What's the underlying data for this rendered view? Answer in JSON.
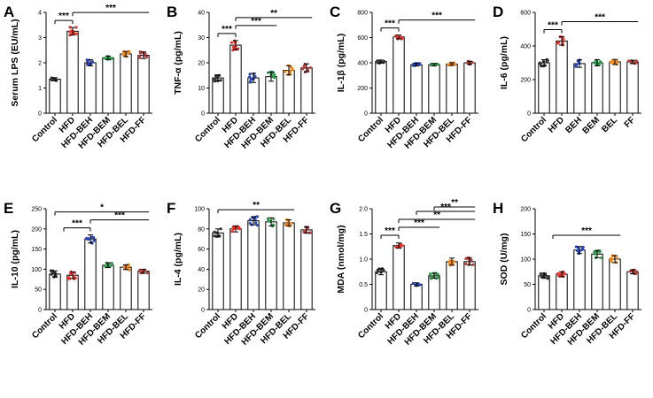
{
  "colors": {
    "Control": "#333333",
    "HFD": "#e8322d",
    "BEH": "#2b46b5",
    "BEM": "#2e9a4a",
    "BEL": "#f28a1e",
    "FF": "#b0413e",
    "axis": "#000000",
    "bar_fill": "#ffffff"
  },
  "chart_data": [
    {
      "panel": "A",
      "type": "bar",
      "ylabel": "Serum LPS (EU/mL)",
      "categories": [
        "Control",
        "HFD",
        "HFD-BEH",
        "HFD-BEM",
        "HFD-BEL",
        "HFD-FF"
      ],
      "values": [
        1.35,
        3.25,
        2.0,
        2.2,
        2.35,
        2.3
      ],
      "errors": [
        0.06,
        0.15,
        0.12,
        0.07,
        0.1,
        0.13
      ],
      "ylim": [
        0,
        4
      ],
      "yticks": [
        "0",
        "1",
        "2",
        "3",
        "4"
      ],
      "brackets": [
        {
          "from": 0,
          "to": 1,
          "label": "***"
        },
        {
          "from": 1,
          "to": [
            2,
            5
          ],
          "label": "***"
        }
      ]
    },
    {
      "panel": "B",
      "type": "bar",
      "ylabel": "TNF-α (pg/mL)",
      "categories": [
        "Control",
        "HFD",
        "HFD-BEH",
        "HFD-BEM",
        "HFD-BEL",
        "HFD-FF"
      ],
      "values": [
        14,
        27,
        14,
        14.5,
        17,
        18
      ],
      "errors": [
        1.2,
        1.8,
        1.8,
        1.8,
        1.8,
        1.6
      ],
      "ylim": [
        0,
        40
      ],
      "yticks": [
        "0",
        "10",
        "20",
        "30",
        "40"
      ],
      "brackets": [
        {
          "from": 0,
          "to": 1,
          "label": "***"
        },
        {
          "from": 1,
          "to": [
            2,
            3
          ],
          "label": "***"
        },
        {
          "from": 1,
          "to": [
            4,
            5
          ],
          "label": "**"
        }
      ]
    },
    {
      "panel": "C",
      "type": "bar",
      "ylabel": "IL-1β (pg/mL)",
      "categories": [
        "Control",
        "HFD",
        "HFD-BEH",
        "HFD-BEM",
        "HFD-BEL",
        "HFD-FF"
      ],
      "values": [
        410,
        605,
        385,
        385,
        390,
        400
      ],
      "errors": [
        12,
        15,
        10,
        10,
        10,
        12
      ],
      "ylim": [
        0,
        800
      ],
      "yticks": [
        "0",
        "200",
        "400",
        "600",
        "800"
      ],
      "brackets": [
        {
          "from": 0,
          "to": 1,
          "label": "***"
        },
        {
          "from": 1,
          "to": [
            2,
            5
          ],
          "label": "***"
        }
      ]
    },
    {
      "panel": "D",
      "type": "bar",
      "ylabel": "IL-6 (pg/mL)",
      "categories": [
        "Control",
        "HFD",
        "BEH",
        "BEM",
        "BEL",
        "FF"
      ],
      "values": [
        300,
        430,
        295,
        300,
        305,
        305
      ],
      "errors": [
        18,
        25,
        22,
        18,
        15,
        10
      ],
      "ylim": [
        0,
        600
      ],
      "yticks": [
        "0",
        "200",
        "400",
        "600"
      ],
      "brackets": [
        {
          "from": 0,
          "to": 1,
          "label": "***"
        },
        {
          "from": 1,
          "to": [
            2,
            5
          ],
          "label": "***"
        }
      ]
    },
    {
      "panel": "E",
      "type": "bar",
      "ylabel": "IL-10 (pg/mL)",
      "categories": [
        "Control",
        "HFD",
        "HFD-BEH",
        "HFD-BEM",
        "HFD-BEL",
        "HFD-FF"
      ],
      "values": [
        88,
        85,
        175,
        110,
        105,
        95
      ],
      "errors": [
        8,
        8,
        10,
        6,
        6,
        5
      ],
      "ylim": [
        0,
        250
      ],
      "yticks": [
        "0",
        "50",
        "100",
        "150",
        "200",
        "250"
      ],
      "brackets": [
        {
          "from": [
            0,
            1
          ],
          "to": 2,
          "label": "***"
        },
        {
          "from": 2,
          "to": [
            3,
            5
          ],
          "label": "***"
        },
        {
          "from": 0,
          "to": [
            3,
            5
          ],
          "label": "*"
        }
      ]
    },
    {
      "panel": "F",
      "type": "bar",
      "ylabel": "IL-4 (pg/mL)",
      "categories": [
        "Control",
        "HFD",
        "HFD-BEH",
        "HFD-BEM",
        "HFD-BEL",
        "HFD-FF"
      ],
      "values": [
        76,
        80,
        88,
        87,
        86,
        79
      ],
      "errors": [
        4,
        3,
        4,
        4,
        3,
        3
      ],
      "ylim": [
        0,
        100
      ],
      "yticks": [
        "0",
        "20",
        "40",
        "60",
        "80",
        "100"
      ],
      "brackets": [
        {
          "from": 0,
          "to": [
            2,
            4
          ],
          "label": "**"
        }
      ]
    },
    {
      "panel": "G",
      "type": "bar",
      "ylabel": "MDA (nmol/mg)",
      "categories": [
        "Control",
        "HFD",
        "HFD-BEH",
        "HFD-BEM",
        "HFD-BEL",
        "HFD-FF"
      ],
      "values": [
        0.75,
        1.27,
        0.5,
        0.67,
        0.95,
        0.95
      ],
      "errors": [
        0.06,
        0.05,
        0.03,
        0.05,
        0.07,
        0.07
      ],
      "ylim": [
        0,
        2.0
      ],
      "yticks": [
        "0",
        "0.5",
        "1.0",
        "1.5",
        "2.0"
      ],
      "brackets": [
        {
          "from": 0,
          "to": 1,
          "label": "***"
        },
        {
          "from": 1,
          "to": [
            2,
            3
          ],
          "label": "***"
        },
        {
          "from": 1,
          "to": [
            4,
            5
          ],
          "label": "**"
        },
        {
          "from": 2,
          "to": [
            4,
            5
          ],
          "label": "***"
        },
        {
          "from": 3,
          "to": [
            4,
            5
          ],
          "label": "**"
        }
      ]
    },
    {
      "panel": "H",
      "type": "bar",
      "ylabel": "SOD (U/mg)",
      "categories": [
        "Control",
        "HFD",
        "HFD-BEH",
        "HFD-BEM",
        "HFD-BEL",
        "HFD-FF"
      ],
      "values": [
        67,
        70,
        118,
        110,
        100,
        75
      ],
      "errors": [
        5,
        5,
        7,
        7,
        7,
        4
      ],
      "ylim": [
        0,
        200
      ],
      "yticks": [
        "0",
        "50",
        "100",
        "150",
        "200"
      ],
      "brackets": [
        {
          "from": [
            0,
            1
          ],
          "to": [
            2,
            4
          ],
          "label": "***"
        }
      ]
    }
  ]
}
